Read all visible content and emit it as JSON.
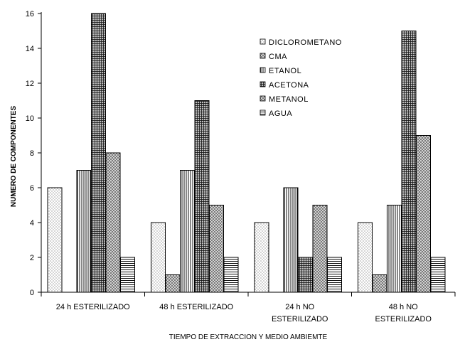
{
  "chart_data": {
    "type": "bar",
    "xlabel": "TIEMPO DE EXTRACCION Y MEDIO AMBIEMTE",
    "ylabel": "NUMERO DE COMPONENTES",
    "ylim": [
      0,
      16
    ],
    "yticks": [
      0,
      2,
      4,
      6,
      8,
      10,
      12,
      14,
      16
    ],
    "grid": false,
    "legend_position": "top-right",
    "categories": [
      [
        "24 h ESTERILIZADO"
      ],
      [
        "48 h ESTERILIZADO"
      ],
      [
        "24 h NO",
        "ESTERILIZADO"
      ],
      [
        "48 h NO",
        "ESTERILIZADO"
      ]
    ],
    "series": [
      {
        "name": "DICLOROMETANO",
        "pattern": "dots",
        "values": [
          6,
          4,
          4,
          4
        ]
      },
      {
        "name": "CMA",
        "pattern": "diamond",
        "values": [
          0,
          1,
          0,
          1
        ]
      },
      {
        "name": "ETANOL",
        "pattern": "vlines",
        "values": [
          7,
          7,
          6,
          5
        ]
      },
      {
        "name": "ACETONA",
        "pattern": "grid",
        "values": [
          16,
          11,
          2,
          15
        ]
      },
      {
        "name": "METANOL",
        "pattern": "diamond",
        "values": [
          8,
          5,
          5,
          9
        ]
      },
      {
        "name": "AGUA",
        "pattern": "hlines",
        "values": [
          2,
          2,
          2,
          2
        ]
      }
    ]
  }
}
